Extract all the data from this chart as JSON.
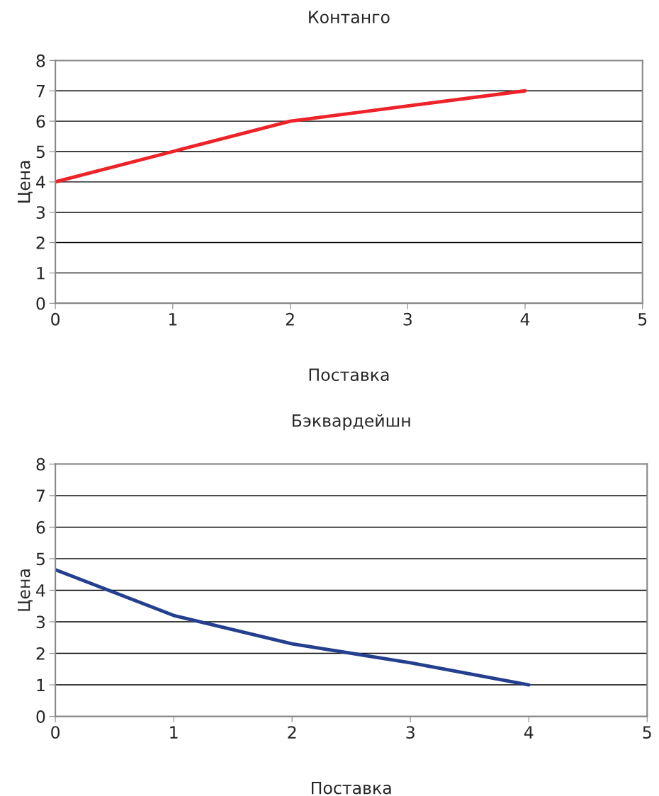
{
  "chart_data": [
    {
      "type": "line",
      "title": "Контанго",
      "xlabel": "Поставка",
      "ylabel": "Цена",
      "x": [
        0,
        1,
        2,
        3,
        4
      ],
      "series": [
        {
          "color": "#ee2229",
          "values": [
            4,
            5,
            6,
            6.5,
            7
          ]
        }
      ],
      "xlim": [
        0,
        5
      ],
      "xticks": [
        0,
        1,
        2,
        3,
        4,
        5
      ],
      "ylim": [
        0,
        8
      ],
      "yticks": [
        0,
        1,
        2,
        3,
        4,
        5,
        6,
        7,
        8
      ],
      "grid": "y",
      "line_style": "solid",
      "marker": "none"
    },
    {
      "type": "line",
      "title": "Бэквардейшн",
      "xlabel": "Поставка",
      "ylabel": "Цена",
      "x": [
        0,
        1,
        2,
        3,
        4
      ],
      "series": [
        {
          "color": "#253f8f",
          "values": [
            4.65,
            3.2,
            2.3,
            1.7,
            1.0
          ]
        }
      ],
      "xlim": [
        0,
        5
      ],
      "xticks": [
        0,
        1,
        2,
        3,
        4,
        5
      ],
      "ylim": [
        0,
        8
      ],
      "yticks": [
        0,
        1,
        2,
        3,
        4,
        5,
        6,
        7,
        8
      ],
      "grid": "y",
      "line_style": "solid",
      "marker": "none"
    }
  ]
}
